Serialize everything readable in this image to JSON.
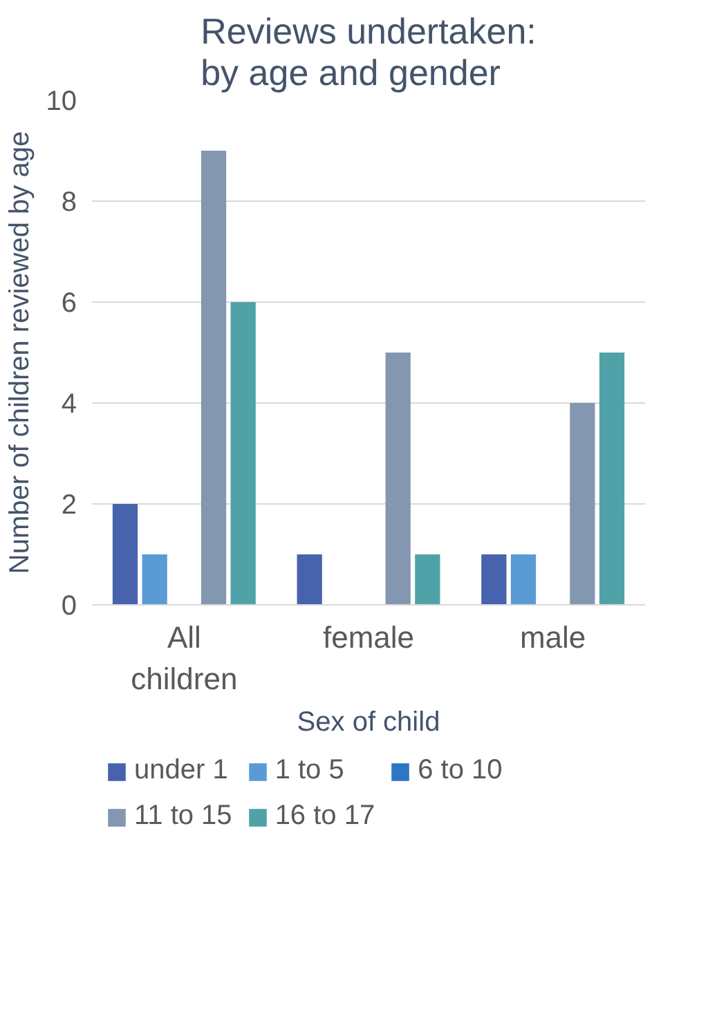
{
  "chart_data": {
    "type": "bar",
    "title": "Reviews undertaken: by age and gender",
    "xlabel": "Sex of child",
    "ylabel": "Number of children reviewed by age",
    "categories": [
      "All children",
      "female",
      "male"
    ],
    "series": [
      {
        "name": "under 1",
        "color": "#4763ad",
        "values": [
          2,
          1,
          1
        ]
      },
      {
        "name": "1 to 5",
        "color": "#5b9bd5",
        "values": [
          1,
          0,
          1
        ]
      },
      {
        "name": "6 to 10",
        "color": "#2e75c6",
        "values": [
          0,
          0,
          0
        ]
      },
      {
        "name": "11 to 15",
        "color": "#8497b0",
        "values": [
          9,
          5,
          4
        ]
      },
      {
        "name": "16 to 17",
        "color": "#4fa3a8",
        "values": [
          6,
          1,
          5
        ]
      }
    ],
    "ylim": [
      0,
      10
    ],
    "yticks": [
      0,
      2,
      4,
      6,
      8,
      10
    ],
    "grid": "y",
    "legend": "bottom"
  }
}
